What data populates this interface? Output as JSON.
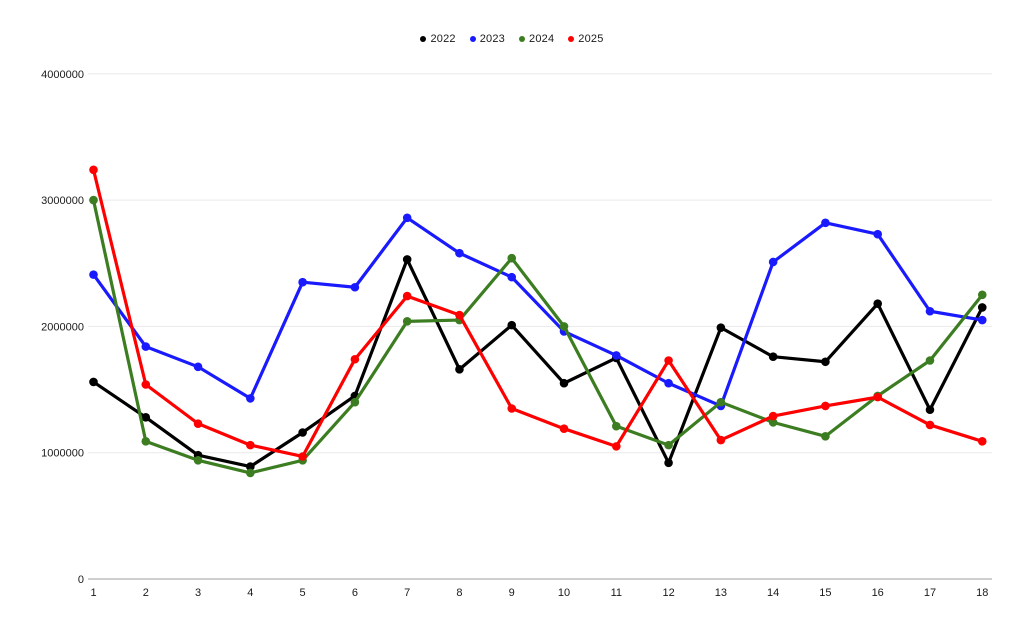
{
  "chart_data": {
    "type": "line",
    "title": "",
    "xlabel": "",
    "ylabel": "",
    "x": [
      1,
      2,
      3,
      4,
      5,
      6,
      7,
      8,
      9,
      10,
      11,
      12,
      13,
      14,
      15,
      16,
      17,
      18
    ],
    "x_tick_labels": [
      "1",
      "2",
      "3",
      "4",
      "5",
      "6",
      "7",
      "8",
      "9",
      "10",
      "11",
      "12",
      "13",
      "14",
      "15",
      "16",
      "17",
      "18"
    ],
    "y_ticks": [
      0,
      1000000,
      2000000,
      3000000,
      4000000
    ],
    "y_tick_labels": [
      "0",
      "1000000",
      "2000000",
      "3000000",
      "4000000"
    ],
    "ylim": [
      0,
      4000000
    ],
    "grid": true,
    "legend_position": "top-center",
    "series": [
      {
        "name": "2022",
        "color": "#000000",
        "values": [
          1560000,
          1280000,
          980000,
          890000,
          1160000,
          1450000,
          2530000,
          1660000,
          2010000,
          1550000,
          1750000,
          920000,
          1990000,
          1760000,
          1720000,
          2180000,
          1340000,
          2150000
        ]
      },
      {
        "name": "2023",
        "color": "#1a1aff",
        "values": [
          2410000,
          1840000,
          1680000,
          1430000,
          2350000,
          2310000,
          2860000,
          2580000,
          2390000,
          1960000,
          1770000,
          1550000,
          1370000,
          2510000,
          2820000,
          2730000,
          2120000,
          2050000
        ]
      },
      {
        "name": "2024",
        "color": "#3c7d21",
        "values": [
          3000000,
          1090000,
          940000,
          840000,
          940000,
          1400000,
          2040000,
          2050000,
          2540000,
          2000000,
          1210000,
          1060000,
          1400000,
          1240000,
          1130000,
          1450000,
          1730000,
          2250000
        ]
      },
      {
        "name": "2025",
        "color": "#ff0000",
        "values": [
          3240000,
          1540000,
          1230000,
          1060000,
          970000,
          1740000,
          2240000,
          2090000,
          1350000,
          1190000,
          1050000,
          1730000,
          1100000,
          1290000,
          1370000,
          1440000,
          1220000,
          1090000
        ]
      }
    ],
    "colors": {
      "background": "#ffffff",
      "gridline": "#e9e9e9",
      "axis_line": "#9e9e9e",
      "tick_label": "#1a1a1a"
    }
  }
}
